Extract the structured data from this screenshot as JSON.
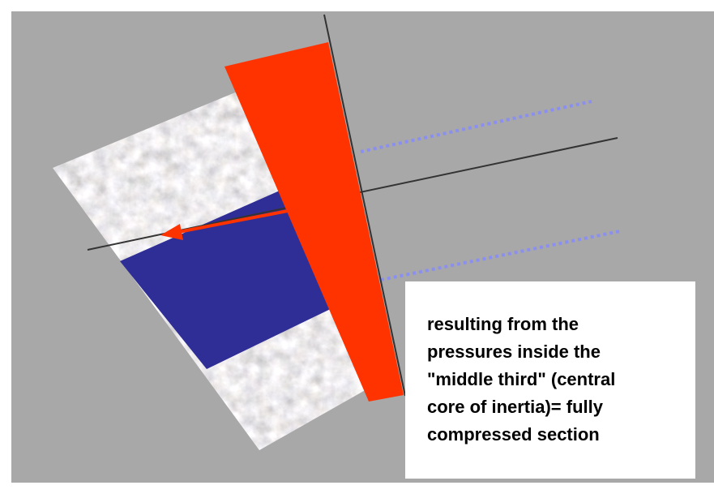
{
  "caption": {
    "lines": [
      "resulting from the",
      "pressures inside the",
      "\"middle third\" (central",
      "core of inertia)= fully",
      "compressed section"
    ]
  }
}
